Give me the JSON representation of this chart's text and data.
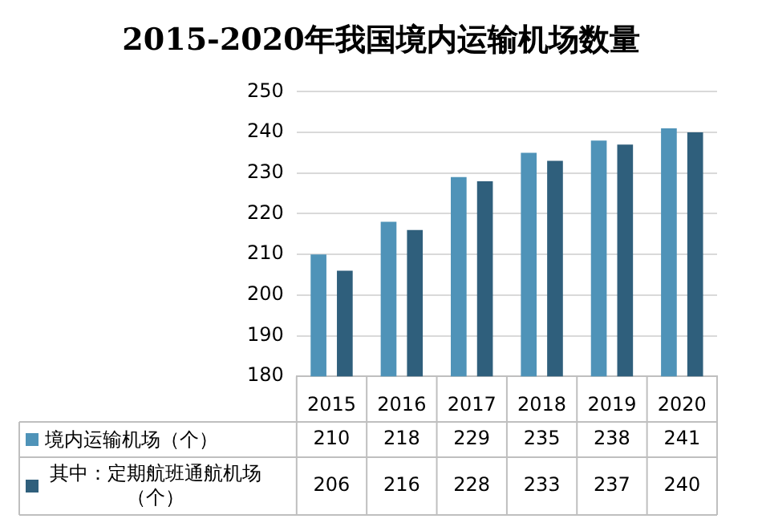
{
  "chart_data": {
    "type": "bar",
    "title": "2015-2020年我国境内运输机场数量",
    "categories": [
      "2015",
      "2016",
      "2017",
      "2018",
      "2019",
      "2020"
    ],
    "series": [
      {
        "name": "境内运输机场（个）",
        "color": "#4f93b8",
        "values": [
          210,
          218,
          229,
          235,
          238,
          241
        ]
      },
      {
        "name": "其中：定期航班通航机场（个）",
        "color": "#2f5f7c",
        "values": [
          206,
          216,
          228,
          233,
          237,
          240
        ]
      }
    ],
    "ylim": [
      180,
      250
    ],
    "yticks": [
      180,
      190,
      200,
      210,
      220,
      230,
      240,
      250
    ],
    "grid": "y",
    "legend": "bottom",
    "data_labels": true
  }
}
